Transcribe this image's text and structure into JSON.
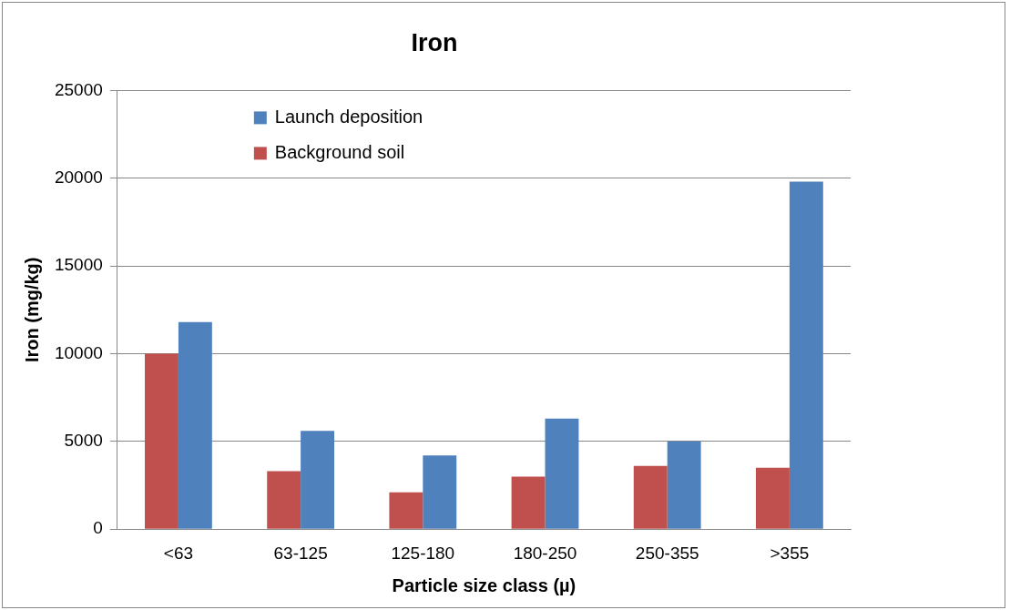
{
  "chart_data": {
    "type": "bar",
    "title": "Iron",
    "xlabel": "Particle size class (µ)",
    "ylabel": "Iron (mg/kg)",
    "categories": [
      "<63",
      "63-125",
      "125-180",
      "180-250",
      "250-355",
      ">355"
    ],
    "series": [
      {
        "name": "Background soil",
        "color": "#c0504d",
        "values": [
          10000,
          3300,
          2100,
          3000,
          3600,
          3500
        ]
      },
      {
        "name": "Launch deposition",
        "color": "#4f81bd",
        "values": [
          11800,
          5600,
          4200,
          6300,
          5000,
          19800
        ]
      }
    ],
    "ylim": [
      0,
      25000
    ],
    "yticks": [
      0,
      5000,
      10000,
      15000,
      20000,
      25000
    ],
    "grid": "y",
    "legend": "top left"
  }
}
